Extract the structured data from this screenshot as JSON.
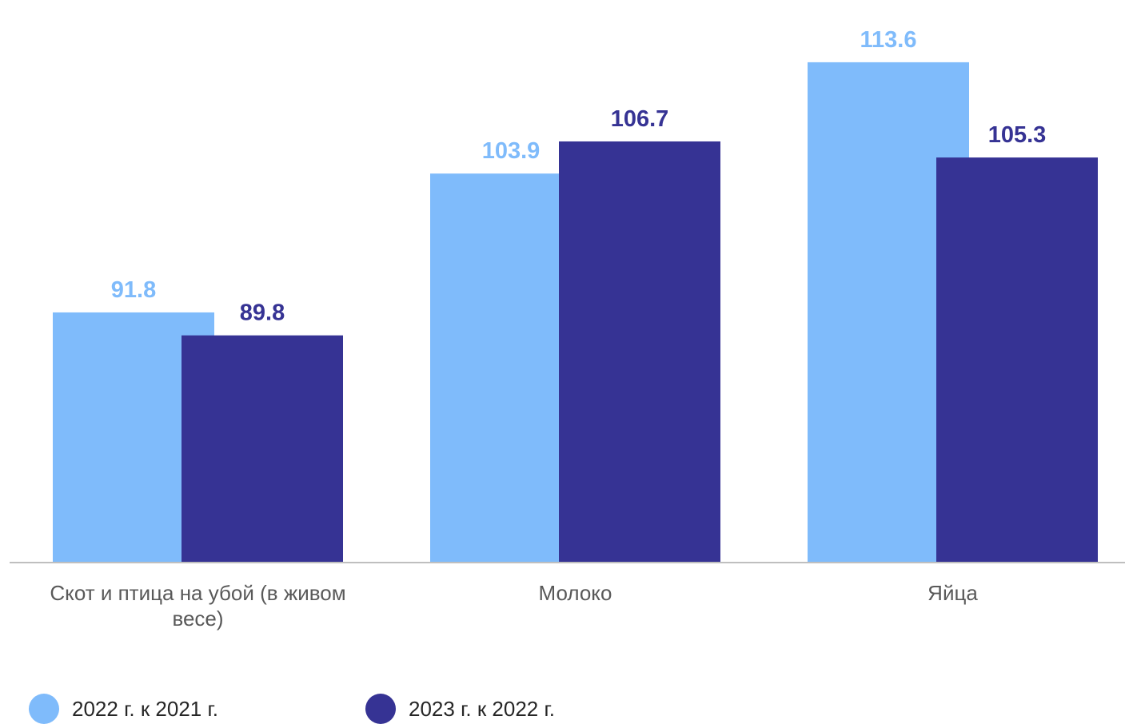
{
  "chart_data": {
    "type": "bar",
    "title": "",
    "xlabel": "",
    "ylabel": "",
    "categories": [
      [
        "Скот и птица на убой (в живом",
        "весе)"
      ],
      [
        "Молоко"
      ],
      [
        "Яйца"
      ]
    ],
    "series": [
      {
        "name": "2022 г. к 2021 г.",
        "values": [
          91.8,
          103.9,
          113.6
        ],
        "labels": [
          "91.8",
          "103.9",
          "113.6"
        ],
        "color": "#7FBBFB"
      },
      {
        "name": "2023 г. к 2022 г.",
        "values": [
          89.8,
          106.7,
          105.3
        ],
        "labels": [
          "89.8",
          "106.7",
          "105.3"
        ],
        "color": "#363394"
      }
    ],
    "ylim": [
      70,
      120
    ],
    "grid": false,
    "data_labels": true,
    "legend_position": "bottom-left",
    "axis_line_color": "#BFBFBF",
    "label_colors": [
      "#7FBBFB",
      "#363394"
    ]
  }
}
